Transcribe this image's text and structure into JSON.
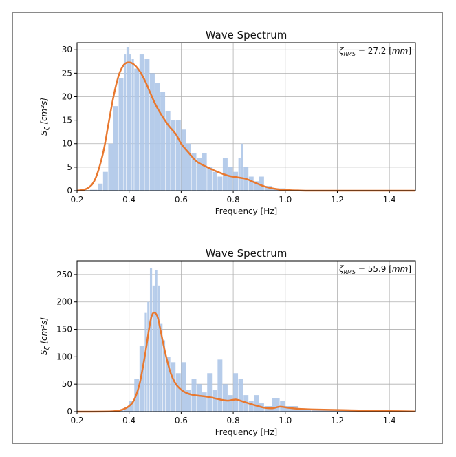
{
  "chart_data": [
    {
      "type": "line",
      "title": "Wave Spectrum",
      "xlabel": "Frequency [Hz]",
      "ylabel": "S_ζ [cm²s]",
      "ylabel_parts": {
        "main": "S",
        "sub": "ζ",
        "unit": "[cm²s]"
      },
      "annotation": {
        "symbol": "ζ",
        "sub": "RMS",
        "text": " = 27.2 [",
        "unit": "mm",
        "close": "]"
      },
      "xlim": [
        0.2,
        1.5
      ],
      "ylim": [
        0,
        31.5
      ],
      "xticks": [
        "0.2",
        "0.4",
        "0.6",
        "0.8",
        "1.0",
        "1.2",
        "1.4"
      ],
      "xtick_values": [
        0.2,
        0.4,
        0.6,
        0.8,
        1.0,
        1.2,
        1.4
      ],
      "yticks": [
        "0",
        "5",
        "10",
        "15",
        "20",
        "25",
        "30"
      ],
      "ytick_values": [
        0,
        5,
        10,
        15,
        20,
        25,
        30
      ],
      "grid": true,
      "series": [
        {
          "kind": "bar",
          "color": "#aec7e8",
          "x": [
            0.2,
            0.25,
            0.28,
            0.3,
            0.32,
            0.34,
            0.36,
            0.38,
            0.39,
            0.4,
            0.41,
            0.42,
            0.44,
            0.46,
            0.48,
            0.5,
            0.52,
            0.54,
            0.56,
            0.58,
            0.6,
            0.62,
            0.64,
            0.66,
            0.68,
            0.7,
            0.72,
            0.74,
            0.76,
            0.78,
            0.8,
            0.82,
            0.83,
            0.84,
            0.86,
            0.88,
            0.9,
            0.92,
            0.95,
            1.0,
            1.05,
            1.1,
            1.2,
            1.3,
            1.4,
            1.5
          ],
          "values": [
            0,
            0.2,
            1.5,
            4,
            10,
            18,
            24,
            29,
            30.5,
            29,
            28,
            26,
            29,
            28,
            25,
            23,
            21,
            17,
            15,
            15,
            13,
            10,
            8,
            7,
            8,
            5,
            4,
            3,
            7,
            5,
            4,
            7,
            10,
            5,
            3,
            2,
            3,
            1,
            0.5,
            0.2,
            0.1,
            0,
            0,
            0,
            0,
            0
          ]
        },
        {
          "kind": "line",
          "color": "#e8782f",
          "x": [
            0.2,
            0.24,
            0.27,
            0.3,
            0.32,
            0.34,
            0.36,
            0.38,
            0.4,
            0.42,
            0.44,
            0.46,
            0.48,
            0.5,
            0.52,
            0.55,
            0.58,
            0.6,
            0.63,
            0.66,
            0.7,
            0.74,
            0.78,
            0.82,
            0.85,
            0.88,
            0.92,
            0.96,
            1.0,
            1.05,
            1.1,
            1.2,
            1.3,
            1.4,
            1.5
          ],
          "values": [
            0,
            0.5,
            2.5,
            8,
            14,
            20,
            24.5,
            26.8,
            27.3,
            26.8,
            25.5,
            23.5,
            21,
            18.5,
            16.5,
            14,
            12,
            10,
            8,
            6.2,
            5,
            4,
            3.2,
            2.8,
            2.5,
            1.8,
            0.9,
            0.4,
            0.15,
            0.05,
            0,
            0,
            0,
            0,
            0
          ]
        }
      ]
    },
    {
      "type": "line",
      "title": "Wave Spectrum",
      "xlabel": "Frequency [Hz]",
      "ylabel": "S_ζ [cm²s]",
      "ylabel_parts": {
        "main": "S",
        "sub": "ζ",
        "unit": "[cm²s]"
      },
      "annotation": {
        "symbol": "ζ",
        "sub": "RMS",
        "text": " = 55.9 [",
        "unit": "mm",
        "close": "]"
      },
      "xlim": [
        0.2,
        1.5
      ],
      "ylim": [
        0,
        275
      ],
      "xticks": [
        "0.2",
        "0.4",
        "0.6",
        "0.8",
        "1.0",
        "1.2",
        "1.4"
      ],
      "xtick_values": [
        0.2,
        0.4,
        0.6,
        0.8,
        1.0,
        1.2,
        1.4
      ],
      "yticks": [
        "0",
        "50",
        "100",
        "150",
        "200",
        "250"
      ],
      "ytick_values": [
        0,
        50,
        100,
        150,
        200,
        250
      ],
      "grid": true,
      "series": [
        {
          "kind": "bar",
          "color": "#aec7e8",
          "x": [
            0.2,
            0.3,
            0.35,
            0.38,
            0.4,
            0.42,
            0.44,
            0.46,
            0.47,
            0.48,
            0.49,
            0.5,
            0.51,
            0.52,
            0.53,
            0.54,
            0.56,
            0.58,
            0.6,
            0.62,
            0.64,
            0.66,
            0.68,
            0.7,
            0.72,
            0.74,
            0.76,
            0.78,
            0.8,
            0.82,
            0.84,
            0.86,
            0.88,
            0.9,
            0.92,
            0.95,
            0.98,
            1.0,
            1.05,
            1.1,
            1.2,
            1.3,
            1.4,
            1.5
          ],
          "values": [
            0,
            0,
            3,
            8,
            20,
            60,
            120,
            180,
            200,
            262,
            230,
            258,
            230,
            160,
            130,
            100,
            90,
            70,
            90,
            40,
            60,
            50,
            35,
            70,
            40,
            95,
            50,
            30,
            70,
            60,
            30,
            20,
            30,
            15,
            10,
            25,
            20,
            10,
            5,
            4,
            2,
            1,
            0.5,
            0
          ]
        },
        {
          "kind": "line",
          "color": "#e8782f",
          "x": [
            0.2,
            0.33,
            0.37,
            0.4,
            0.42,
            0.44,
            0.46,
            0.48,
            0.49,
            0.5,
            0.51,
            0.52,
            0.54,
            0.56,
            0.58,
            0.6,
            0.62,
            0.65,
            0.7,
            0.75,
            0.78,
            0.81,
            0.84,
            0.88,
            0.92,
            0.95,
            0.98,
            1.01,
            1.05,
            1.1,
            1.2,
            1.3,
            1.4,
            1.5
          ],
          "values": [
            0,
            0.5,
            3,
            10,
            22,
            50,
            100,
            160,
            178,
            180,
            172,
            150,
            105,
            70,
            50,
            40,
            34,
            30,
            27,
            22,
            20,
            22,
            18,
            12,
            7,
            6,
            9,
            7,
            5,
            4,
            3,
            2,
            1,
            0.3
          ]
        }
      ]
    }
  ]
}
